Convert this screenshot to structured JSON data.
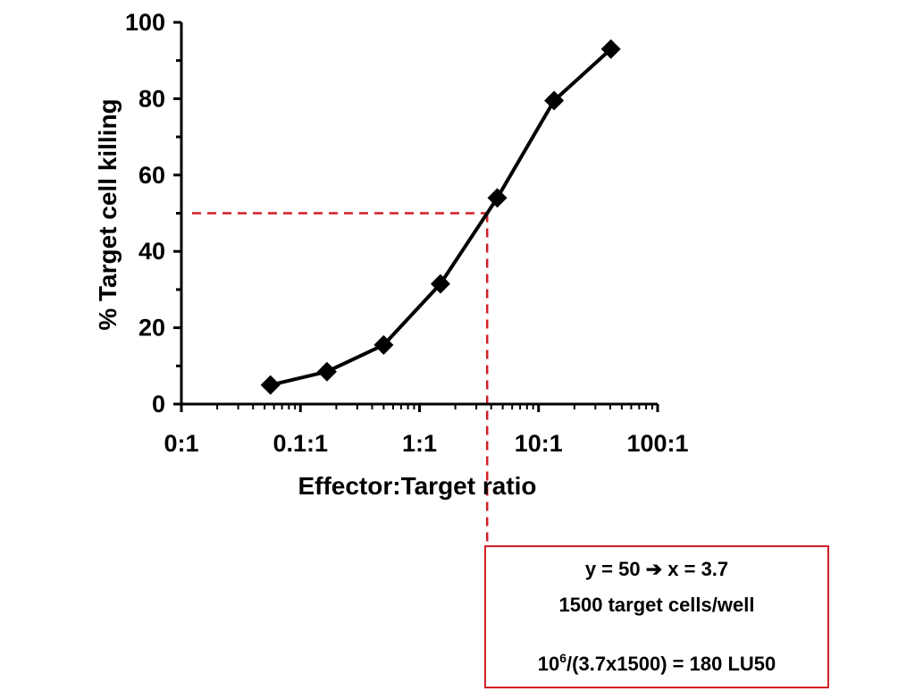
{
  "chart_data": {
    "type": "line",
    "title": "",
    "xlabel": "Effector:Target ratio",
    "ylabel": "% Target cell killing",
    "x_scale": "log",
    "xlim": [
      0.01,
      100
    ],
    "ylim": [
      0,
      100
    ],
    "x_tick_values": [
      0.01,
      0.1,
      1,
      10,
      100
    ],
    "x_tick_labels": [
      "0:1",
      "0.1:1",
      "1:1",
      "10:1",
      "100:1"
    ],
    "y_tick_values": [
      0,
      20,
      40,
      60,
      80,
      100
    ],
    "y_tick_labels": [
      "0",
      "20",
      "40",
      "60",
      "80",
      "100"
    ],
    "grid": false,
    "legend": "none",
    "series": [
      {
        "marker": "diamond",
        "color": "#000000",
        "points": [
          {
            "x": 0.056,
            "y": 5
          },
          {
            "x": 0.167,
            "y": 8.5
          },
          {
            "x": 0.5,
            "y": 15.5
          },
          {
            "x": 1.5,
            "y": 31.5
          },
          {
            "x": 4.5,
            "y": 54
          },
          {
            "x": 13.5,
            "y": 79.5
          },
          {
            "x": 40.5,
            "y": 93
          }
        ]
      }
    ],
    "reference_lines": {
      "color": "#d21f26",
      "style": "dashed",
      "y": 50,
      "x": 3.7
    }
  },
  "annotation": {
    "line1": "y = 50 ➔ x = 3.7",
    "line2": "1500 target cells/well",
    "line3_base": "10",
    "line3_exp": "6",
    "line3_rest": "/(3.7x1500) = 180 LU50"
  },
  "colors": {
    "axis": "#000000",
    "series": "#000000",
    "reference": "#d21f26",
    "box_border": "#d21f26"
  }
}
